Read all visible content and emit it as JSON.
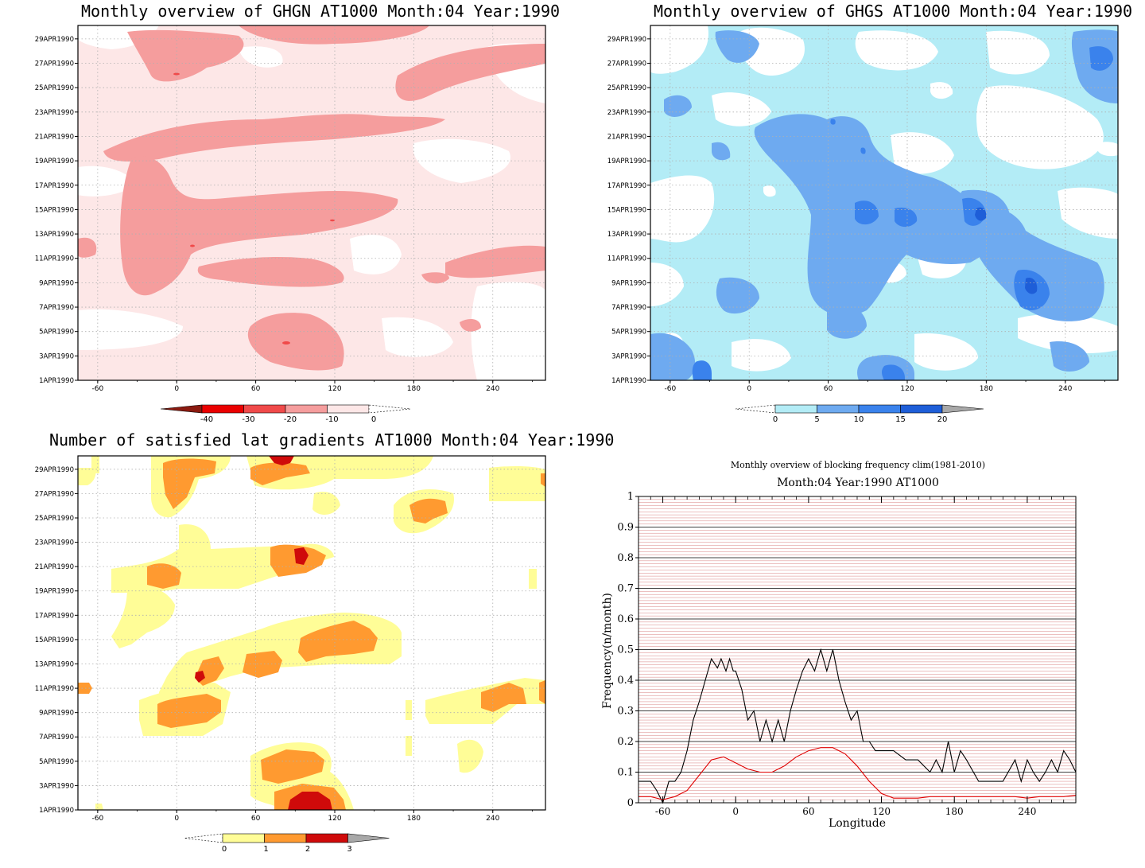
{
  "panels": [
    {
      "title": "Monthly overview of GHGN AT1000 Month:04 Year:1990",
      "colorbar": {
        "labels": [
          "-40",
          "-30",
          "-20",
          "-10",
          "0"
        ],
        "colors": [
          "#8b1a10",
          "#ea0000",
          "#f04a4a",
          "#f59d9d",
          "#fde7e7"
        ]
      }
    },
    {
      "title": "Monthly overview of GHGS AT1000 Month:04 Year:1990",
      "colorbar": {
        "labels": [
          "0",
          "5",
          "10",
          "15",
          "20"
        ],
        "colors": [
          "#b3ecf6",
          "#6eaaf0",
          "#3a82ec",
          "#1e5ed8"
        ]
      }
    },
    {
      "title": "Number of satisfied lat gradients AT1000 Month:04 Year:1990",
      "colorbar": {
        "labels": [
          "0",
          "1",
          "2",
          "3"
        ],
        "colors": [
          "#fffd97",
          "#ff9a30",
          "#cf0a0a"
        ]
      }
    }
  ],
  "date_ticks": [
    "1APR1990",
    "3APR1990",
    "5APR1990",
    "7APR1990",
    "9APR1990",
    "11APR1990",
    "13APR1990",
    "15APR1990",
    "17APR1990",
    "19APR1990",
    "21APR1990",
    "23APR1990",
    "25APR1990",
    "27APR1990",
    "29APR1990"
  ],
  "lon_ticks": [
    "-60",
    "0",
    "60",
    "120",
    "180",
    "240"
  ],
  "chart_data": [
    {
      "type": "heatmap",
      "title": "Monthly overview of GHGN AT1000 Month:04 Year:1990",
      "x_ticks": [
        -60,
        0,
        60,
        120,
        180,
        240
      ],
      "xlim": [
        -75,
        280
      ],
      "y_ticks": [
        "1APR1990",
        "3APR1990",
        "5APR1990",
        "7APR1990",
        "9APR1990",
        "11APR1990",
        "13APR1990",
        "15APR1990",
        "17APR1990",
        "19APR1990",
        "21APR1990",
        "23APR1990",
        "25APR1990",
        "27APR1990",
        "29APR1990"
      ],
      "levels": [
        -40,
        -30,
        -20,
        -10,
        0
      ]
    },
    {
      "type": "heatmap",
      "title": "Monthly overview of GHGS AT1000 Month:04 Year:1990",
      "x_ticks": [
        -60,
        0,
        60,
        120,
        180,
        240
      ],
      "xlim": [
        -75,
        280
      ],
      "levels": [
        0,
        5,
        10,
        15,
        20
      ]
    },
    {
      "type": "heatmap",
      "title": "Number of satisfied lat gradients AT1000 Month:04 Year:1990",
      "x_ticks": [
        -60,
        0,
        60,
        120,
        180,
        240
      ],
      "xlim": [
        -75,
        280
      ],
      "levels": [
        0,
        1,
        2,
        3
      ]
    },
    {
      "type": "line",
      "title": "Monthly overview of blocking frequency clim(1981-2010)",
      "subtitle": "Month:04 Year:1990  AT1000",
      "xlabel": "Longitude",
      "ylabel": "Frequency(n/month)",
      "xlim": [
        -80,
        280
      ],
      "ylim": [
        0,
        1
      ],
      "x_ticks": [
        "-60",
        "0",
        "60",
        "120",
        "180",
        "240"
      ],
      "y_ticks": [
        "0",
        "0.1",
        "0.2",
        "0.3",
        "0.4",
        "0.5",
        "0.6",
        "0.7",
        "0.8",
        "0.9",
        "1"
      ],
      "series": [
        {
          "color": "#000000",
          "x": [
            -80,
            -70,
            -65,
            -60,
            -55,
            -50,
            -45,
            -40,
            -35,
            -30,
            -25,
            -20,
            -15,
            -12,
            -8,
            -5,
            -2,
            0,
            5,
            10,
            15,
            20,
            25,
            30,
            35,
            40,
            45,
            50,
            55,
            60,
            65,
            70,
            75,
            80,
            85,
            90,
            95,
            100,
            105,
            110,
            115,
            120,
            130,
            140,
            150,
            160,
            165,
            170,
            175,
            180,
            185,
            190,
            200,
            210,
            220,
            230,
            235,
            240,
            245,
            250,
            255,
            260,
            265,
            270,
            275,
            280
          ],
          "y": [
            0.07,
            0.07,
            0.04,
            0.0,
            0.07,
            0.07,
            0.1,
            0.17,
            0.27,
            0.33,
            0.4,
            0.47,
            0.44,
            0.47,
            0.43,
            0.47,
            0.43,
            0.43,
            0.37,
            0.27,
            0.3,
            0.2,
            0.27,
            0.2,
            0.27,
            0.2,
            0.3,
            0.37,
            0.43,
            0.47,
            0.43,
            0.5,
            0.43,
            0.5,
            0.4,
            0.33,
            0.27,
            0.3,
            0.2,
            0.2,
            0.17,
            0.17,
            0.17,
            0.14,
            0.14,
            0.1,
            0.14,
            0.1,
            0.2,
            0.1,
            0.17,
            0.14,
            0.07,
            0.07,
            0.07,
            0.14,
            0.07,
            0.14,
            0.1,
            0.07,
            0.1,
            0.14,
            0.1,
            0.17,
            0.14,
            0.1
          ]
        },
        {
          "color": "#e00000",
          "x": [
            -80,
            -70,
            -60,
            -50,
            -40,
            -30,
            -20,
            -10,
            0,
            10,
            20,
            30,
            40,
            50,
            60,
            70,
            80,
            90,
            100,
            110,
            120,
            130,
            140,
            150,
            160,
            170,
            180,
            190,
            200,
            210,
            220,
            230,
            240,
            250,
            260,
            270,
            280
          ],
          "y": [
            0.02,
            0.02,
            0.01,
            0.02,
            0.04,
            0.09,
            0.14,
            0.15,
            0.13,
            0.11,
            0.1,
            0.1,
            0.12,
            0.15,
            0.17,
            0.18,
            0.18,
            0.16,
            0.12,
            0.07,
            0.03,
            0.015,
            0.015,
            0.015,
            0.02,
            0.02,
            0.02,
            0.02,
            0.02,
            0.02,
            0.02,
            0.02,
            0.015,
            0.02,
            0.02,
            0.02,
            0.025
          ]
        }
      ]
    }
  ],
  "line_chart": {
    "title": "Monthly overview of blocking frequency clim(1981-2010)",
    "subtitle": "Month:04 Year:1990  AT1000",
    "xlabel": "Longitude",
    "ylabel": "Frequency(n/month)"
  }
}
